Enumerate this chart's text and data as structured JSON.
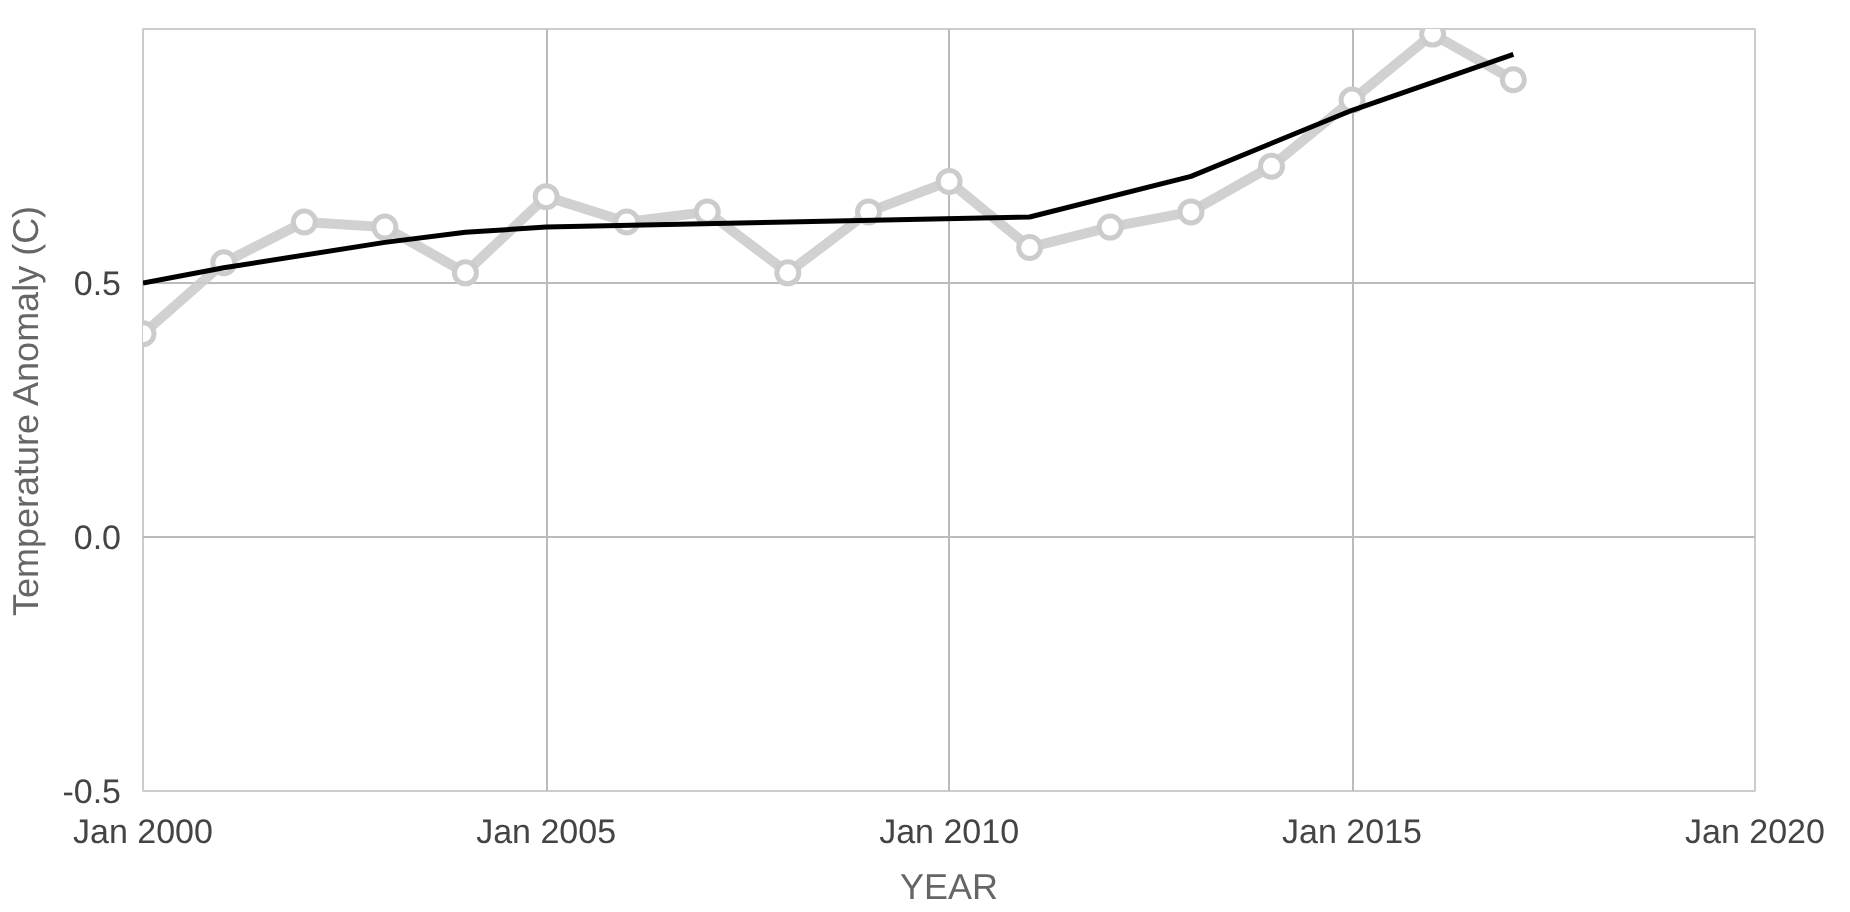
{
  "chart_data": {
    "type": "line",
    "xlabel": "YEAR",
    "ylabel": "Temperature Anomaly (C)",
    "xlim": [
      "2000-01",
      "2020-01"
    ],
    "xticks": [
      {
        "value": "2000-01",
        "label": "Jan 2000"
      },
      {
        "value": "2005-01",
        "label": "Jan 2005"
      },
      {
        "value": "2010-01",
        "label": "Jan 2010"
      },
      {
        "value": "2015-01",
        "label": "Jan 2015"
      },
      {
        "value": "2020-01",
        "label": "Jan 2020"
      }
    ],
    "ylim": [
      -0.5,
      1.0
    ],
    "yticks": [
      -0.5,
      {
        "value": 0,
        "label": "0.0"
      },
      0.5
    ],
    "grid": true,
    "series": [
      {
        "color": "#cccccc",
        "marker": "circle",
        "x": [
          "2000",
          "2001",
          "2002",
          "2003",
          "2004",
          "2005",
          "2006",
          "2007",
          "2008",
          "2009",
          "2010",
          "2011",
          "2012",
          "2013",
          "2014",
          "2015",
          "2016",
          "2017"
        ],
        "values": [
          0.4,
          0.54,
          0.62,
          0.61,
          0.52,
          0.67,
          0.62,
          0.64,
          0.52,
          0.64,
          0.7,
          0.57,
          0.61,
          0.64,
          0.73,
          0.86,
          0.99,
          0.9
        ]
      },
      {
        "color": "#000000",
        "marker": "none",
        "x": [
          "2000",
          "2001",
          "2003",
          "2004",
          "2005",
          "2008",
          "2011",
          "2013",
          "2015",
          "2017"
        ],
        "values": [
          0.5,
          0.53,
          0.58,
          0.6,
          0.61,
          0.62,
          0.63,
          0.71,
          0.84,
          0.95
        ]
      }
    ]
  }
}
